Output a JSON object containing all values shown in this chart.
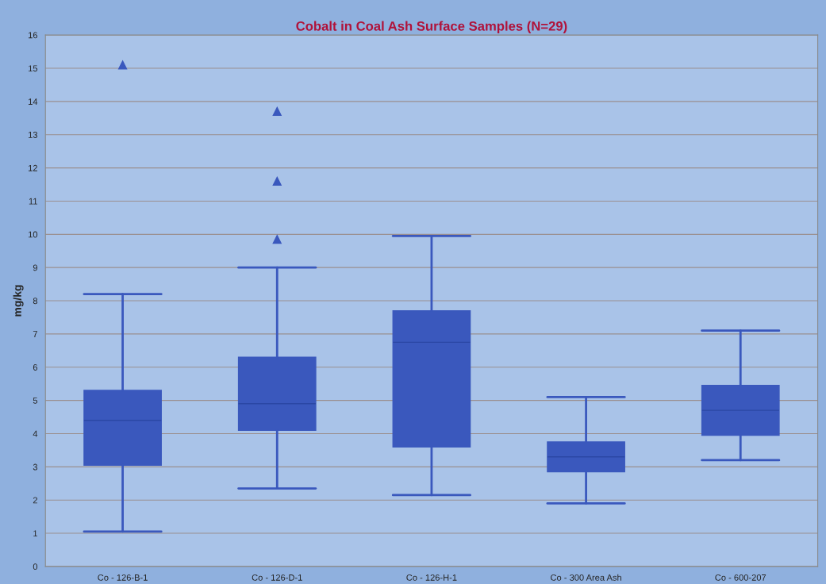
{
  "chart_data": {
    "type": "box",
    "title": "Cobalt in Coal Ash Surface Samples (N=29)",
    "ylabel": "mg/kg",
    "categories": [
      "Co - 126-B-1",
      "Co - 126-D-1",
      "Co - 126-H-1",
      "Co - 300 Area Ash",
      "Co - 600-207"
    ],
    "color": "#3a58bd",
    "marker": "triangle",
    "grid": "y",
    "ylim": [
      0,
      16
    ],
    "yticks": [
      0,
      1,
      2,
      3,
      4,
      5,
      6,
      7,
      8,
      9,
      10,
      11,
      12,
      13,
      14,
      15,
      16
    ],
    "boxes": [
      {
        "low": 1.05,
        "q1": 3.05,
        "median": 4.4,
        "q3": 5.3,
        "high": 8.2,
        "outliers": [
          15.1
        ]
      },
      {
        "low": 2.35,
        "q1": 4.1,
        "median": 4.9,
        "q3": 6.3,
        "high": 9.0,
        "outliers": [
          13.7,
          11.6,
          9.85
        ]
      },
      {
        "low": 2.15,
        "q1": 3.6,
        "median": 6.75,
        "q3": 7.7,
        "high": 9.95
      },
      {
        "low": 1.9,
        "q1": 2.85,
        "median": 3.3,
        "q3": 3.75,
        "high": 5.1
      },
      {
        "low": 3.2,
        "q1": 3.95,
        "median": 4.7,
        "q3": 5.45,
        "high": 7.1
      }
    ]
  }
}
